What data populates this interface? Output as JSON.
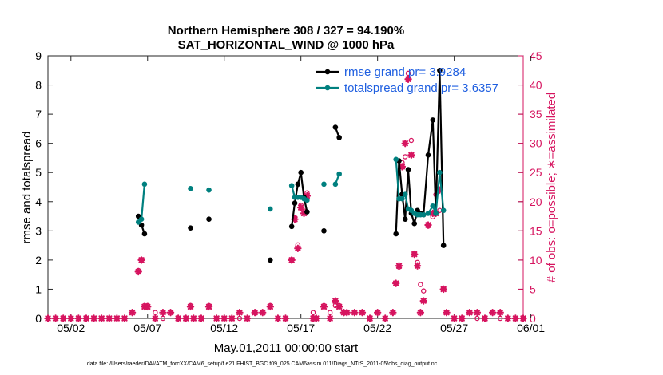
{
  "chart_data": {
    "type": "line",
    "title_line1": "Northern Hemisphere 308 / 327 = 94.190%",
    "title_line2": "SAT_HORIZONTAL_WIND @ 1000 hPa",
    "xlabel": "May.01,2011 00:00:00 start",
    "ylabel": "rmse and totalspread",
    "ylabel_right": "# of obs: o=possible; ∗=assimilated",
    "footnote": "data file: /Users/raeder/DAI/ATM_forcXX/CAM6_setup/f.e21.FHIST_BGC.f09_025.CAM6assim.011/Diags_NTrS_2011-05/obs_diag_output.nc",
    "xlim": [
      0.5,
      31.5
    ],
    "ylim": [
      0,
      9
    ],
    "ylim_right": [
      0,
      45
    ],
    "x_ticks": [
      {
        "x": 2,
        "label": "05/02"
      },
      {
        "x": 7,
        "label": "05/07"
      },
      {
        "x": 12,
        "label": "05/12"
      },
      {
        "x": 17,
        "label": "05/17"
      },
      {
        "x": 22,
        "label": "05/22"
      },
      {
        "x": 27,
        "label": "05/27"
      },
      {
        "x": 32,
        "label": "06/01"
      }
    ],
    "y_ticks": [
      "0",
      "1",
      "2",
      "3",
      "4",
      "5",
      "6",
      "7",
      "8",
      "9"
    ],
    "y_ticks_right": [
      "0",
      "5",
      "10",
      "15",
      "20",
      "25",
      "30",
      "35",
      "40",
      "45"
    ],
    "colors": {
      "rmse": "#000000",
      "spread": "#00807f",
      "obs": "#d6145f",
      "legend_text": "#1f5fe0"
    },
    "series": [
      {
        "name": "rmse grand pr= 3.9284",
        "key": "rmse",
        "segments": [
          [
            [
              6.4,
              3.5
            ],
            [
              6.6,
              3.2
            ],
            [
              6.8,
              2.9
            ]
          ],
          [
            [
              9.8,
              3.1
            ]
          ],
          [
            [
              11.0,
              3.4
            ]
          ],
          [
            [
              15.0,
              2.0
            ]
          ],
          [
            [
              16.4,
              3.15
            ],
            [
              16.6,
              3.95
            ],
            [
              16.8,
              4.6
            ],
            [
              17.0,
              5.0
            ],
            [
              17.2,
              4.15
            ],
            [
              17.4,
              3.65
            ]
          ],
          [
            [
              18.5,
              3.0
            ]
          ],
          [
            [
              19.25,
              6.55
            ],
            [
              19.5,
              6.2
            ]
          ],
          [
            [
              23.2,
              2.9
            ],
            [
              23.4,
              5.4
            ],
            [
              23.6,
              4.25
            ],
            [
              23.8,
              3.4
            ],
            [
              24.0,
              5.1
            ],
            [
              24.2,
              3.6
            ],
            [
              24.4,
              3.25
            ],
            [
              24.6,
              3.7
            ],
            [
              24.8,
              3.6
            ],
            [
              25.0,
              3.55
            ],
            [
              25.3,
              5.6
            ],
            [
              25.6,
              6.8
            ],
            [
              25.8,
              3.6
            ],
            [
              26.05,
              8.5
            ],
            [
              26.3,
              2.5
            ]
          ]
        ]
      },
      {
        "name": "totalspread grand pr= 3.6357",
        "key": "spread",
        "segments": [
          [
            [
              6.4,
              3.3
            ],
            [
              6.6,
              3.4
            ],
            [
              6.8,
              4.6
            ]
          ],
          [
            [
              9.8,
              4.45
            ]
          ],
          [
            [
              11.0,
              4.4
            ]
          ],
          [
            [
              15.0,
              3.75
            ]
          ],
          [
            [
              16.4,
              4.55
            ],
            [
              16.6,
              4.15
            ],
            [
              16.8,
              4.15
            ],
            [
              17.0,
              4.15
            ],
            [
              17.2,
              4.1
            ],
            [
              17.4,
              4.05
            ]
          ],
          [
            [
              18.5,
              4.6
            ]
          ],
          [
            [
              19.25,
              4.6
            ],
            [
              19.5,
              4.95
            ]
          ],
          [
            [
              23.2,
              5.45
            ],
            [
              23.4,
              4.1
            ],
            [
              23.6,
              4.1
            ],
            [
              23.8,
              4.25
            ],
            [
              24.0,
              3.75
            ],
            [
              24.2,
              3.7
            ],
            [
              24.4,
              3.6
            ],
            [
              24.6,
              3.55
            ],
            [
              24.8,
              3.55
            ],
            [
              25.0,
              3.55
            ],
            [
              25.3,
              3.6
            ],
            [
              25.6,
              3.85
            ],
            [
              25.8,
              3.6
            ],
            [
              26.05,
              5.0
            ],
            [
              26.3,
              3.7
            ]
          ]
        ]
      }
    ],
    "obs_possible": [
      [
        0.5,
        0
      ],
      [
        1,
        0
      ],
      [
        1.5,
        0
      ],
      [
        2,
        0
      ],
      [
        2.5,
        0
      ],
      [
        3,
        0
      ],
      [
        3.5,
        0
      ],
      [
        4,
        0
      ],
      [
        4.5,
        0
      ],
      [
        5,
        0
      ],
      [
        5.5,
        0
      ],
      [
        6,
        1.0
      ],
      [
        6.4,
        8.2
      ],
      [
        6.6,
        10.1
      ],
      [
        6.8,
        2.2
      ],
      [
        7.0,
        2.2
      ],
      [
        7.5,
        1.0
      ],
      [
        8.0,
        0
      ],
      [
        8.5,
        1.0
      ],
      [
        9.0,
        0
      ],
      [
        9.5,
        0
      ],
      [
        9.8,
        2.2
      ],
      [
        10.0,
        0
      ],
      [
        10.5,
        0
      ],
      [
        11.0,
        2.2
      ],
      [
        11.5,
        0
      ],
      [
        12,
        0
      ],
      [
        12.5,
        0
      ],
      [
        13,
        0
      ],
      [
        13.5,
        0
      ],
      [
        14,
        1.0
      ],
      [
        14.5,
        1.0
      ],
      [
        15.0,
        2.2
      ],
      [
        15.5,
        0
      ],
      [
        16.0,
        0
      ],
      [
        16.4,
        10.1
      ],
      [
        16.6,
        17.3
      ],
      [
        16.8,
        12.6
      ],
      [
        17.0,
        19.4
      ],
      [
        17.2,
        18.4
      ],
      [
        17.4,
        21.5
      ],
      [
        17.8,
        1.0
      ],
      [
        18.0,
        0
      ],
      [
        18.5,
        2.2
      ],
      [
        18.9,
        1.0
      ],
      [
        19.25,
        2.2
      ],
      [
        19.5,
        2.2
      ],
      [
        19.8,
        1.0
      ],
      [
        20.0,
        1.0
      ],
      [
        20.5,
        1.0
      ],
      [
        21.0,
        1.0
      ],
      [
        21.5,
        0
      ],
      [
        22.0,
        1.0
      ],
      [
        22.5,
        0
      ],
      [
        23.0,
        1.0
      ],
      [
        23.2,
        6.0
      ],
      [
        23.4,
        8.8
      ],
      [
        23.6,
        26.7
      ],
      [
        23.8,
        27.7
      ],
      [
        24.0,
        42.0
      ],
      [
        24.2,
        30.5
      ],
      [
        24.4,
        11.1
      ],
      [
        24.6,
        9.6
      ],
      [
        24.8,
        5.8
      ],
      [
        25.0,
        4.7
      ],
      [
        25.3,
        15.8
      ],
      [
        25.6,
        17.4
      ],
      [
        25.8,
        21.2
      ],
      [
        26.05,
        18.5
      ],
      [
        26.3,
        5.2
      ],
      [
        26.5,
        1.0
      ],
      [
        27,
        0
      ],
      [
        27.5,
        0
      ],
      [
        28,
        1.0
      ],
      [
        28.5,
        0
      ],
      [
        29,
        0
      ],
      [
        29.5,
        1.0
      ],
      [
        30,
        0
      ],
      [
        30.5,
        0
      ],
      [
        31,
        0
      ],
      [
        31.5,
        0
      ]
    ],
    "obs_assimilated": [
      [
        0.5,
        0
      ],
      [
        1,
        0
      ],
      [
        1.5,
        0
      ],
      [
        2,
        0
      ],
      [
        2.5,
        0
      ],
      [
        3,
        0
      ],
      [
        3.5,
        0
      ],
      [
        4,
        0
      ],
      [
        4.5,
        0
      ],
      [
        5,
        0
      ],
      [
        5.5,
        0
      ],
      [
        6,
        1.0
      ],
      [
        6.4,
        8.0
      ],
      [
        6.6,
        10.0
      ],
      [
        6.8,
        2.0
      ],
      [
        7.0,
        2.0
      ],
      [
        7.5,
        0
      ],
      [
        8.0,
        1.0
      ],
      [
        8.5,
        1.0
      ],
      [
        9.0,
        0
      ],
      [
        9.5,
        0
      ],
      [
        9.8,
        2.0
      ],
      [
        10.0,
        0
      ],
      [
        10.5,
        0
      ],
      [
        11.0,
        2.0
      ],
      [
        11.5,
        0
      ],
      [
        12,
        0
      ],
      [
        12.5,
        0
      ],
      [
        13,
        1.0
      ],
      [
        13.5,
        0
      ],
      [
        14,
        1.0
      ],
      [
        14.5,
        1.0
      ],
      [
        15.0,
        2.0
      ],
      [
        15.5,
        0
      ],
      [
        16.0,
        0
      ],
      [
        16.4,
        10.0
      ],
      [
        16.6,
        17.0
      ],
      [
        16.8,
        12.0
      ],
      [
        17.0,
        19.0
      ],
      [
        17.2,
        18.0
      ],
      [
        17.4,
        21.0
      ],
      [
        17.8,
        0
      ],
      [
        18.0,
        0
      ],
      [
        18.5,
        2.0
      ],
      [
        18.9,
        0
      ],
      [
        19.25,
        3.0
      ],
      [
        19.5,
        2.0
      ],
      [
        19.8,
        1.0
      ],
      [
        20.0,
        1.0
      ],
      [
        20.5,
        1.0
      ],
      [
        21.0,
        1.0
      ],
      [
        21.5,
        0
      ],
      [
        22.0,
        1.0
      ],
      [
        22.5,
        0
      ],
      [
        23.0,
        1.0
      ],
      [
        23.2,
        6.0
      ],
      [
        23.4,
        9.0
      ],
      [
        23.6,
        26.0
      ],
      [
        23.8,
        30.0
      ],
      [
        24.0,
        41.0
      ],
      [
        24.2,
        28.0
      ],
      [
        24.4,
        11.0
      ],
      [
        24.6,
        9.0
      ],
      [
        24.8,
        1.0
      ],
      [
        25.0,
        3.0
      ],
      [
        25.3,
        16.0
      ],
      [
        25.6,
        18.0
      ],
      [
        25.8,
        18.0
      ],
      [
        26.05,
        22.0
      ],
      [
        26.3,
        5.0
      ],
      [
        26.5,
        1.0
      ],
      [
        27,
        0
      ],
      [
        27.5,
        0
      ],
      [
        28,
        1.0
      ],
      [
        28.5,
        1.0
      ],
      [
        29,
        0
      ],
      [
        29.5,
        1.0
      ],
      [
        30,
        1.0
      ],
      [
        30.5,
        0
      ],
      [
        31,
        0
      ],
      [
        31.5,
        0
      ]
    ]
  }
}
